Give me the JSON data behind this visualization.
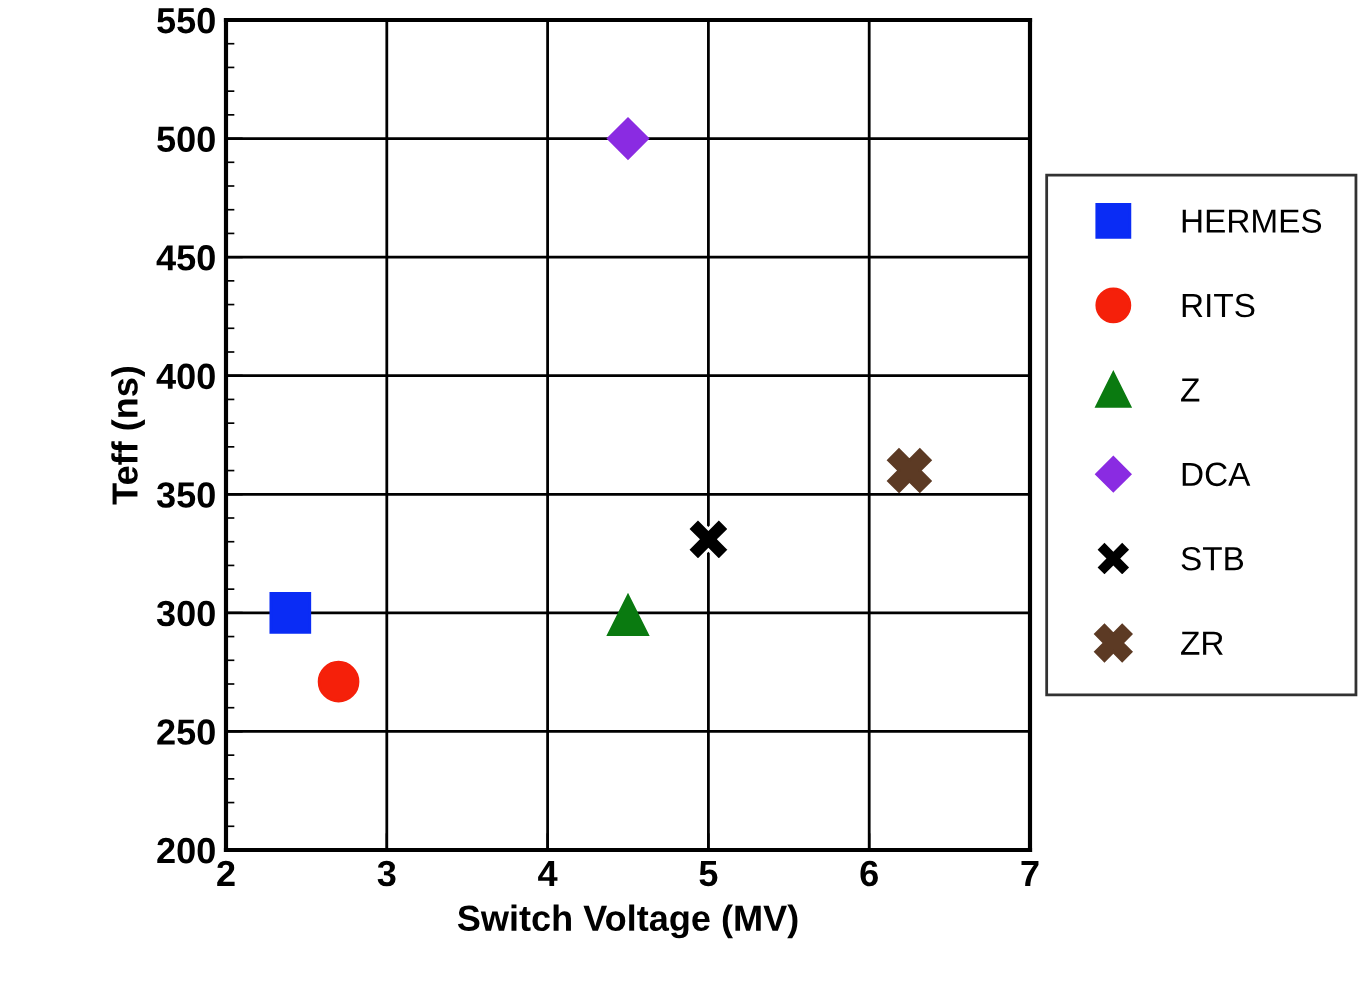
{
  "chart_data": {
    "type": "scatter",
    "xlabel": "Switch Voltage (MV)",
    "ylabel": "Teff (ns)",
    "xlim": [
      2,
      7
    ],
    "xticks": [
      2,
      3,
      4,
      5,
      6,
      7
    ],
    "ylim": [
      200,
      550
    ],
    "yticks": [
      200,
      250,
      300,
      350,
      400,
      450,
      500,
      550
    ],
    "grid": true,
    "legend": "right",
    "series": [
      {
        "name": "HERMES",
        "color": "#0a2cf5",
        "marker": "square",
        "x": [
          2.4
        ],
        "values": [
          300
        ]
      },
      {
        "name": "RITS",
        "color": "#f5200a",
        "marker": "circle",
        "x": [
          2.7
        ],
        "values": [
          271
        ]
      },
      {
        "name": "Z",
        "color": "#0a7a10",
        "marker": "triangle",
        "x": [
          4.5
        ],
        "values": [
          299
        ]
      },
      {
        "name": "DCA",
        "color": "#8a2be2",
        "marker": "diamond",
        "x": [
          4.5
        ],
        "values": [
          500
        ]
      },
      {
        "name": "STB",
        "color": "#000000",
        "marker": "cross",
        "x": [
          5.0
        ],
        "values": [
          331
        ]
      },
      {
        "name": "ZR",
        "color": "#5c3a24",
        "marker": "cross",
        "x": [
          6.25
        ],
        "values": [
          360
        ]
      }
    ]
  }
}
